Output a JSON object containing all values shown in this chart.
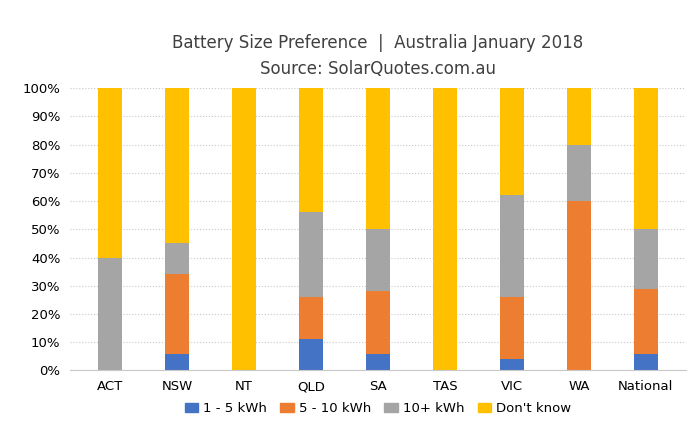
{
  "categories": [
    "ACT",
    "NSW",
    "NT",
    "QLD",
    "SA",
    "TAS",
    "VIC",
    "WA",
    "National"
  ],
  "series": {
    "1 - 5 kWh": [
      0,
      6,
      0,
      11,
      6,
      0,
      4,
      0,
      6
    ],
    "5 - 10 kWh": [
      0,
      28,
      0,
      15,
      22,
      0,
      22,
      60,
      23
    ],
    "10+ kWh": [
      40,
      11,
      0,
      30,
      22,
      0,
      36,
      20,
      21
    ],
    "Don't know": [
      60,
      55,
      100,
      44,
      50,
      100,
      38,
      20,
      50
    ]
  },
  "colors": {
    "1 - 5 kWh": "#4472C4",
    "5 - 10 kWh": "#ED7D31",
    "10+ kWh": "#A5A5A5",
    "Don't know": "#FFC000"
  },
  "title_line1": "Battery Size Preference  |  Australia January 2018",
  "title_line2": "Source: SolarQuotes.com.au",
  "ylabel_ticks": [
    "0%",
    "10%",
    "20%",
    "30%",
    "40%",
    "50%",
    "60%",
    "70%",
    "80%",
    "90%",
    "100%"
  ],
  "ylim": [
    0,
    100
  ],
  "background_color": "#FFFFFF",
  "title_fontsize": 12,
  "subtitle_fontsize": 12,
  "tick_fontsize": 9.5,
  "legend_fontsize": 9.5,
  "bar_width": 0.35
}
